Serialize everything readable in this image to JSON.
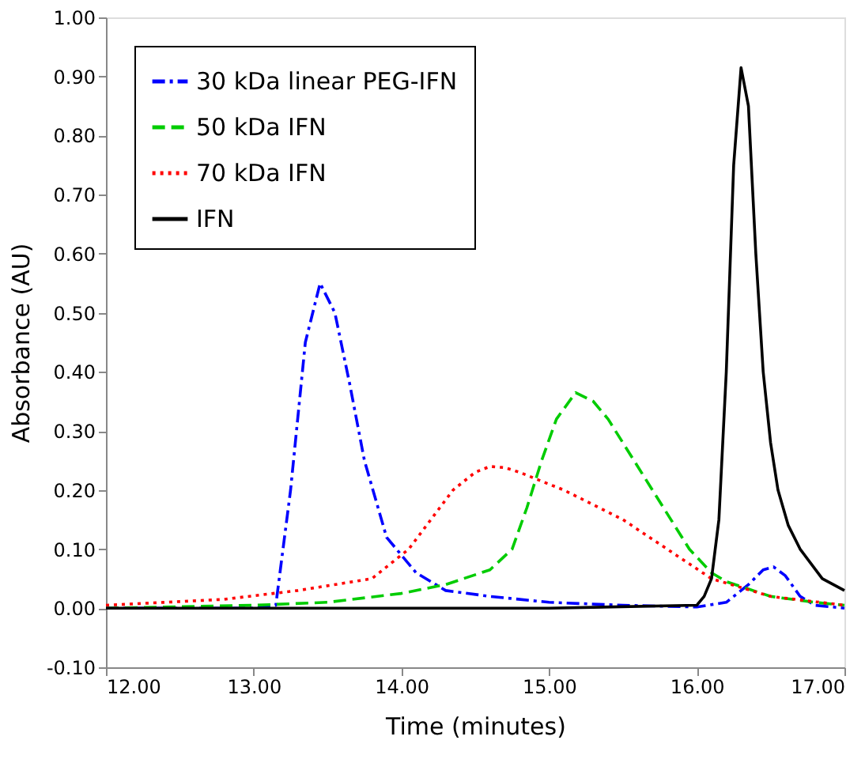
{
  "chart_data": {
    "type": "line",
    "xlabel": "Time (minutes)",
    "ylabel": "Absorbance (AU)",
    "xlim": [
      12,
      17
    ],
    "ylim": [
      -0.1,
      1.0
    ],
    "xticks": [
      {
        "value": 12,
        "label": "12.00"
      },
      {
        "value": 13,
        "label": "13.00"
      },
      {
        "value": 14,
        "label": "14.00"
      },
      {
        "value": 15,
        "label": "15.00"
      },
      {
        "value": 16,
        "label": "16.00"
      },
      {
        "value": 17,
        "label": "17.00"
      }
    ],
    "yticks": [
      {
        "value": -0.1,
        "label": "-0.10"
      },
      {
        "value": 0,
        "label": "0.00"
      },
      {
        "value": 0.1,
        "label": "0.10"
      },
      {
        "value": 0.2,
        "label": "0.20"
      },
      {
        "value": 0.3,
        "label": "0.30"
      },
      {
        "value": 0.4,
        "label": "0.40"
      },
      {
        "value": 0.5,
        "label": "0.50"
      },
      {
        "value": 0.6,
        "label": "0.60"
      },
      {
        "value": 0.7,
        "label": "0.70"
      },
      {
        "value": 0.8,
        "label": "0.80"
      },
      {
        "value": 0.9,
        "label": "0.90"
      },
      {
        "value": 1.0,
        "label": "1.00"
      }
    ],
    "grid": false,
    "legend": "top left",
    "marker": "none",
    "series": [
      {
        "name": "30 kDa linear PEG-IFN",
        "color": "#0000ff",
        "line_style": "dashdot",
        "x": [
          12,
          13,
          13.15,
          13.25,
          13.35,
          13.45,
          13.55,
          13.65,
          13.75,
          13.9,
          14.1,
          14.3,
          14.6,
          15,
          15.5,
          16,
          16.2,
          16.35,
          16.45,
          16.52,
          16.6,
          16.7,
          16.8,
          17
        ],
        "values": [
          0,
          0,
          0.005,
          0.2,
          0.45,
          0.55,
          0.5,
          0.38,
          0.25,
          0.12,
          0.06,
          0.03,
          0.02,
          0.01,
          0.005,
          0.002,
          0.01,
          0.04,
          0.065,
          0.07,
          0.055,
          0.02,
          0.005,
          0
        ]
      },
      {
        "name": "50 kDa IFN",
        "color": "#00cc00",
        "line_style": "dashed",
        "x": [
          12,
          13,
          13.5,
          14,
          14.3,
          14.6,
          14.75,
          14.85,
          14.95,
          15.05,
          15.18,
          15.3,
          15.4,
          15.55,
          15.7,
          15.85,
          15.95,
          16.1,
          16.2,
          16.5,
          16.8,
          17
        ],
        "values": [
          0,
          0.005,
          0.01,
          0.025,
          0.04,
          0.065,
          0.1,
          0.17,
          0.25,
          0.32,
          0.365,
          0.35,
          0.32,
          0.26,
          0.2,
          0.14,
          0.1,
          0.06,
          0.045,
          0.02,
          0.01,
          0.005
        ]
      },
      {
        "name": "70 kDa IFN",
        "color": "#ff0000",
        "line_style": "dotted",
        "x": [
          12,
          12.8,
          13.3,
          13.8,
          14.05,
          14.2,
          14.35,
          14.5,
          14.6,
          14.7,
          14.8,
          15.1,
          15.5,
          15.8,
          16.1,
          16.5,
          17
        ],
        "values": [
          0.005,
          0.015,
          0.03,
          0.05,
          0.1,
          0.15,
          0.2,
          0.23,
          0.24,
          0.238,
          0.23,
          0.2,
          0.15,
          0.1,
          0.05,
          0.02,
          0.005
        ]
      },
      {
        "name": "IFN",
        "color": "#000000",
        "line_style": "solid",
        "x": [
          12,
          15,
          16,
          16.05,
          16.1,
          16.15,
          16.2,
          16.25,
          16.3,
          16.35,
          16.4,
          16.45,
          16.5,
          16.55,
          16.62,
          16.7,
          16.85,
          17
        ],
        "values": [
          0,
          0,
          0.005,
          0.02,
          0.05,
          0.15,
          0.4,
          0.75,
          0.915,
          0.85,
          0.6,
          0.4,
          0.28,
          0.2,
          0.14,
          0.1,
          0.05,
          0.03
        ]
      }
    ]
  }
}
